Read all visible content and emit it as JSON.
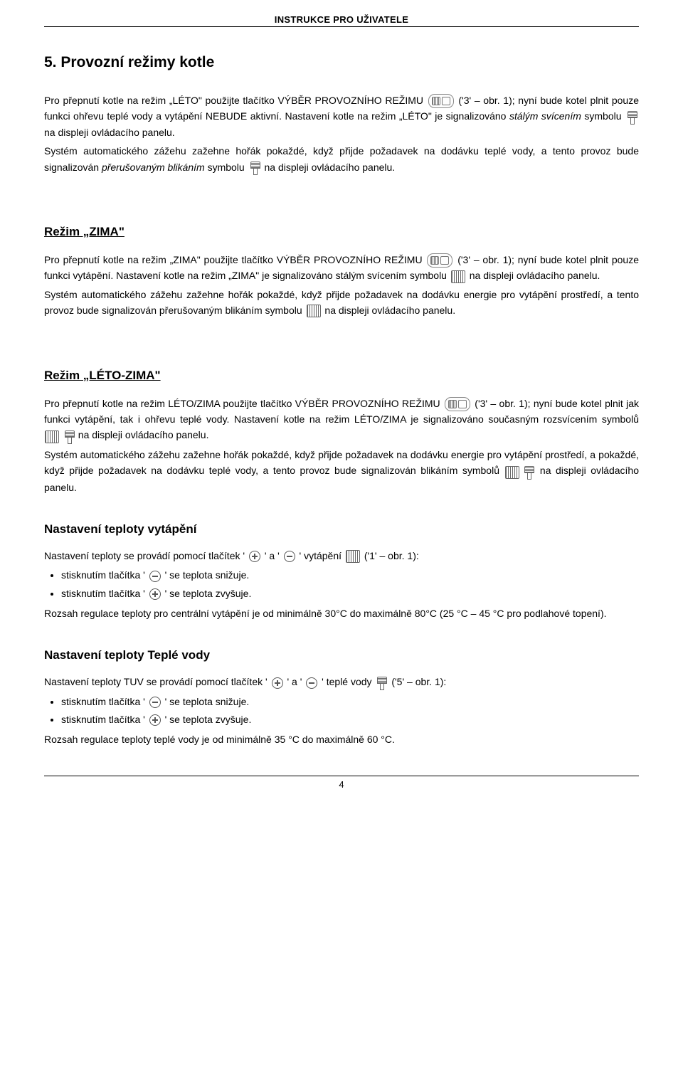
{
  "header": "INSTRUKCE PRO UŽIVATELE",
  "title": "5.  Provozní režimy kotle",
  "leto": {
    "p1a": "Pro přepnutí kotle na režim „LÉTO\" použijte tlačítko VÝBĚR PROVOZNÍHO REŽIMU ",
    "p1b": " ('3' – obr. 1); nyní bude kotel plnit pouze funkci ohřevu teplé vody a vytápění NEBUDE aktivní. Nastavení kotle na režim „LÉTO\" je signalizováno ",
    "p1c": "stálým svícením",
    "p1d": " symbolu ",
    "p1e": " na displeji ovládacího panelu.",
    "p2a": "Systém automatického zážehu zažehne hořák pokaždé, když přijde požadavek na dodávku teplé vody, a tento provoz bude signalizován ",
    "p2b": "přerušovaným blikáním",
    "p2c": " symbolu ",
    "p2d": " na displeji ovládacího panelu."
  },
  "zima_title": "Režim „ZIMA\"",
  "zima": {
    "p1a": "Pro přepnutí kotle na režim „ZIMA\" použijte tlačítko VÝBĚR PROVOZNÍHO REŽIMU ",
    "p1b": " ('3' – obr. 1); nyní bude kotel plnit pouze funkci vytápění. Nastavení kotle na režim „ZIMA\" je signalizováno stálým svícením symbolu ",
    "p1c": " na displeji ovládacího panelu.",
    "p2a": "Systém automatického zážehu zažehne hořák pokaždé, když přijde požadavek na dodávku energie pro vytápění prostředí, a tento provoz bude signalizován přerušovaným blikáním symbolu ",
    "p2b": " na displeji ovládacího panelu."
  },
  "letozima_title": "Režim „LÉTO-ZIMA\"",
  "letozima": {
    "p1a": "Pro přepnutí kotle na režim LÉTO/ZIMA použijte tlačítko VÝBĚR PROVOZNÍHO REŽIMU ",
    "p1b": " ('3' – obr. 1); nyní bude kotel plnit jak funkci vytápění, tak i ohřevu teplé vody. Nastavení kotle na režim LÉTO/ZIMA je signalizováno současným rozsvícením symbolů ",
    "p1c": " na displeji ovládacího panelu.",
    "p2a": "Systém automatického zážehu zažehne hořák pokaždé, když přijde požadavek na dodávku energie pro vytápění prostředí, a pokaždé, když přijde požadavek na dodávku teplé vody, a tento provoz bude signalizován blikáním symbolů ",
    "p2b": " na displeji ovládacího panelu."
  },
  "heat_title": "Nastavení teploty vytápění",
  "heat": {
    "p1a": "Nastavení teploty se provádí pomocí tlačítek ' ",
    "p1b": " ' a ' ",
    "p1c": " ' vytápění   ",
    "p1d": "   ('1' – obr. 1):",
    "li1a": "stisknutím tlačítka ' ",
    "li1b": " ' se teplota snižuje.",
    "li2a": "stisknutím tlačítka ' ",
    "li2b": " ' se teplota zvyšuje.",
    "p2": "Rozsah regulace teploty pro centrální vytápění je od minimálně 30°C do maximálně 80°C (25 °C – 45 °C pro podlahové topení)."
  },
  "water_title": "Nastavení teploty Teplé vody",
  "water": {
    "p1a": "Nastavení teploty TUV se provádí pomocí tlačítek ' ",
    "p1b": " ' a ' ",
    "p1c": " ' teplé vody   ",
    "p1d": "   ('5' – obr. 1):",
    "li1a": "stisknutím tlačítka ' ",
    "li1b": " ' se teplota snižuje.",
    "li2a": "stisknutím tlačítka ' ",
    "li2b": " ' se teplota zvyšuje.",
    "p2": "Rozsah regulace teploty teplé vody je od minimálně 35 °C do maximálně 60 °C."
  },
  "page_number": "4"
}
